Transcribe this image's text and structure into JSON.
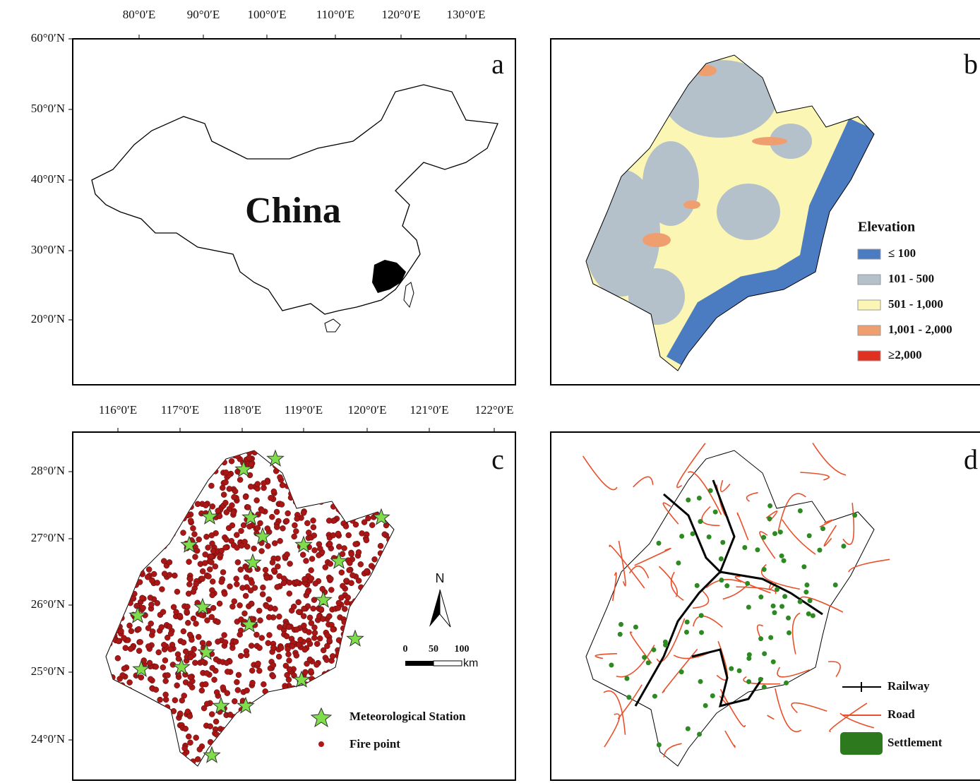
{
  "panels": {
    "a": {
      "letter": "a",
      "label": "China",
      "top_ticks": [
        "80°0′E",
        "90°0′E",
        "100°0′E",
        "110°0′E",
        "120°0′E",
        "130°0′E"
      ],
      "left_ticks": [
        "60°0′N",
        "50°0′N",
        "40°0′N",
        "30°0′N",
        "20°0′N"
      ]
    },
    "b": {
      "letter": "b",
      "legend": {
        "title": "Elevation",
        "items": [
          "≤ 100",
          "101 - 500",
          "501 - 1,000",
          "1,001 - 2,000",
          "≥2,000"
        ]
      }
    },
    "c": {
      "letter": "c",
      "top_ticks": [
        "116°0′E",
        "117°0′E",
        "118°0′E",
        "119°0′E",
        "120°0′E",
        "121°0′E",
        "122°0′E"
      ],
      "left_ticks": [
        "28°0′N",
        "27°0′N",
        "26°0′N",
        "25°0′N",
        "24°0′N"
      ],
      "north": "N",
      "scale": [
        "0",
        "50",
        "100"
      ],
      "scale_unit": "km",
      "legend": [
        "Meteorological Station",
        "Fire point"
      ]
    },
    "d": {
      "letter": "d",
      "legend": [
        "Railway",
        "Road",
        "Settlement"
      ]
    }
  }
}
